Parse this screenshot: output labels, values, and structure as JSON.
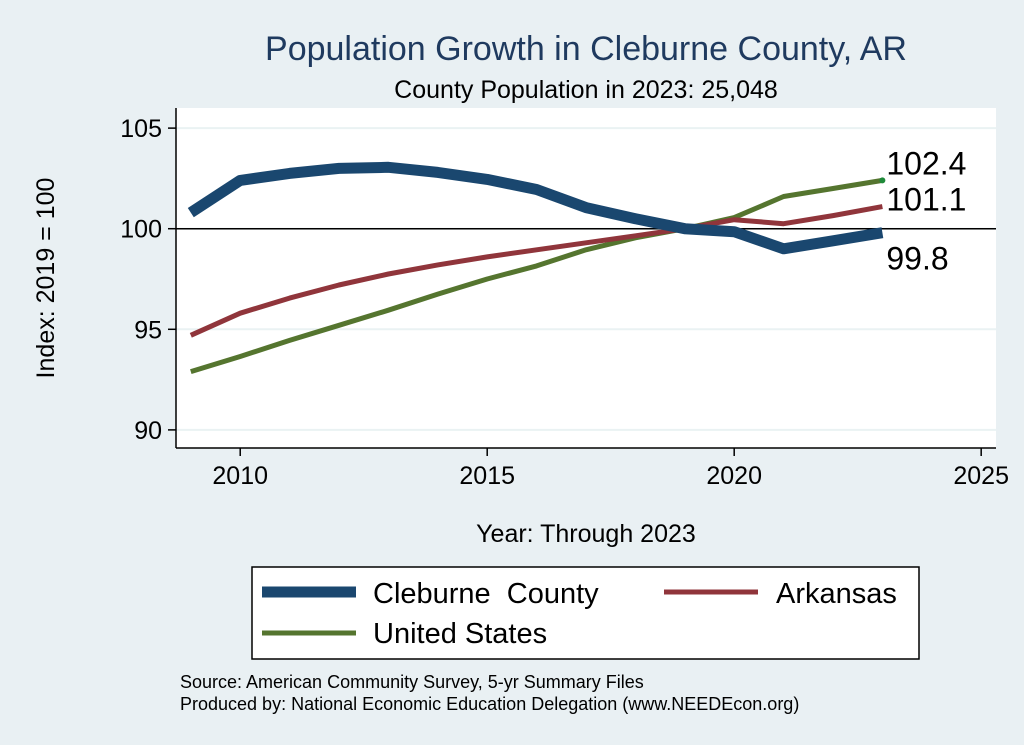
{
  "chart_data": {
    "type": "line",
    "title": "Population Growth in Cleburne County, AR",
    "subtitle": "County Population in 2023: 25,048",
    "xlabel": "Year: Through 2023",
    "ylabel": "Index: 2019 = 100",
    "xlim": [
      2008.7,
      2025.3
    ],
    "ylim": [
      89.1,
      106.0
    ],
    "xticks": [
      2010,
      2015,
      2020,
      2025
    ],
    "yticks": [
      90,
      95,
      100,
      105
    ],
    "reference_line": 100,
    "x": [
      2009,
      2010,
      2011,
      2012,
      2013,
      2014,
      2015,
      2016,
      2017,
      2018,
      2019,
      2020,
      2021,
      2022,
      2023
    ],
    "series": [
      {
        "name": "Cleburne  County",
        "color": "#1a476f",
        "values": [
          100.8,
          102.4,
          102.75,
          103.0,
          103.05,
          102.8,
          102.45,
          101.95,
          101.05,
          100.5,
          100.0,
          99.85,
          99.0,
          99.4,
          99.8
        ],
        "end_label": "99.8"
      },
      {
        "name": "Arkansas",
        "color": "#90353b",
        "values": [
          94.7,
          95.8,
          96.55,
          97.2,
          97.75,
          98.2,
          98.6,
          98.95,
          99.3,
          99.65,
          100.0,
          100.45,
          100.25,
          100.65,
          101.1
        ],
        "end_label": "101.1"
      },
      {
        "name": "United States",
        "color": "#55752f",
        "values": [
          92.9,
          93.65,
          94.45,
          95.2,
          95.95,
          96.75,
          97.5,
          98.15,
          98.95,
          99.55,
          100.0,
          100.55,
          101.6,
          102.0,
          102.4
        ],
        "end_label": "102.4"
      }
    ],
    "legend": {
      "placement": "bottom",
      "entries": [
        "Cleburne  County",
        "Arkansas",
        "United States"
      ]
    },
    "source_note": "Source: American Community Survey, 5-yr Summary Files",
    "produced_note": "Produced by: National Economic Education Delegation (www.NEEDEcon.org)"
  }
}
